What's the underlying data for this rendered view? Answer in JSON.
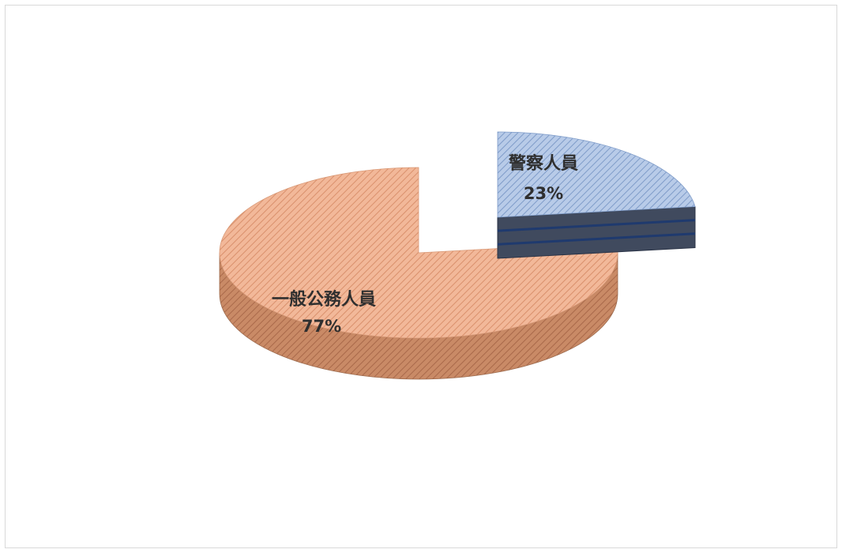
{
  "chart_data": {
    "type": "pie",
    "title": "",
    "categories": [
      "一般公務人員",
      "警察人員"
    ],
    "values": [
      77,
      23
    ],
    "labels": [
      "一般公務人員",
      "警察人員"
    ],
    "percent_labels": [
      "77%",
      "23%"
    ],
    "exploded": [
      false,
      true
    ],
    "three_d": true,
    "legend": "none",
    "colors": {
      "general_top": "#f2b899",
      "general_stripe": "#d9906c",
      "general_side": "#c98a66",
      "general_side_stripe": "#a9694a",
      "police_top": "#b8cbe8",
      "police_stripe": "#7f9cc9",
      "police_side": "#404a5e",
      "police_side_line": "#1f3a6e"
    }
  }
}
